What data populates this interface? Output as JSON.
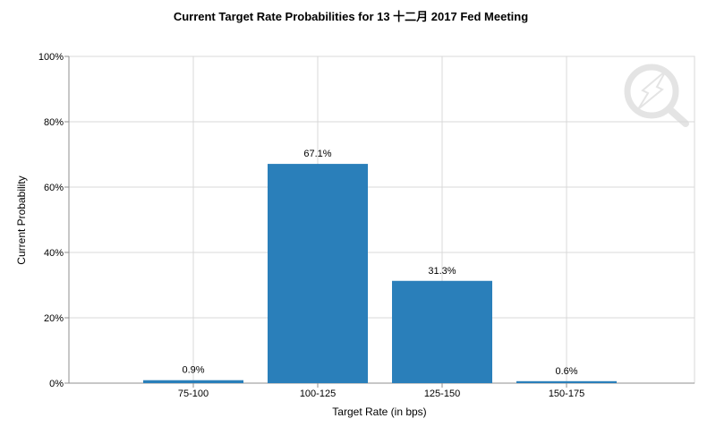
{
  "chart_data": {
    "type": "bar",
    "title": "Current Target Rate Probabilities for 13 十二月 2017 Fed Meeting",
    "xlabel": "Target Rate (in bps)",
    "ylabel": "Current Probability",
    "categories": [
      "75-100",
      "100-125",
      "125-150",
      "150-175"
    ],
    "values": [
      0.9,
      67.1,
      31.3,
      0.6
    ],
    "data_labels": [
      "0.9%",
      "67.1%",
      "31.3%",
      "0.6%"
    ],
    "ylim": [
      0,
      100
    ],
    "yticks": [
      {
        "value": 0,
        "label": "0%"
      },
      {
        "value": 20,
        "label": "20%"
      },
      {
        "value": 40,
        "label": "40%"
      },
      {
        "value": 60,
        "label": "60%"
      },
      {
        "value": 80,
        "label": "80%"
      },
      {
        "value": 100,
        "label": "100%"
      }
    ],
    "grid": true,
    "legend": "none",
    "bar_color": "#2a7fba",
    "grid_color": "#d9d9d9",
    "watermark_icon": "quote-logo-icon"
  }
}
